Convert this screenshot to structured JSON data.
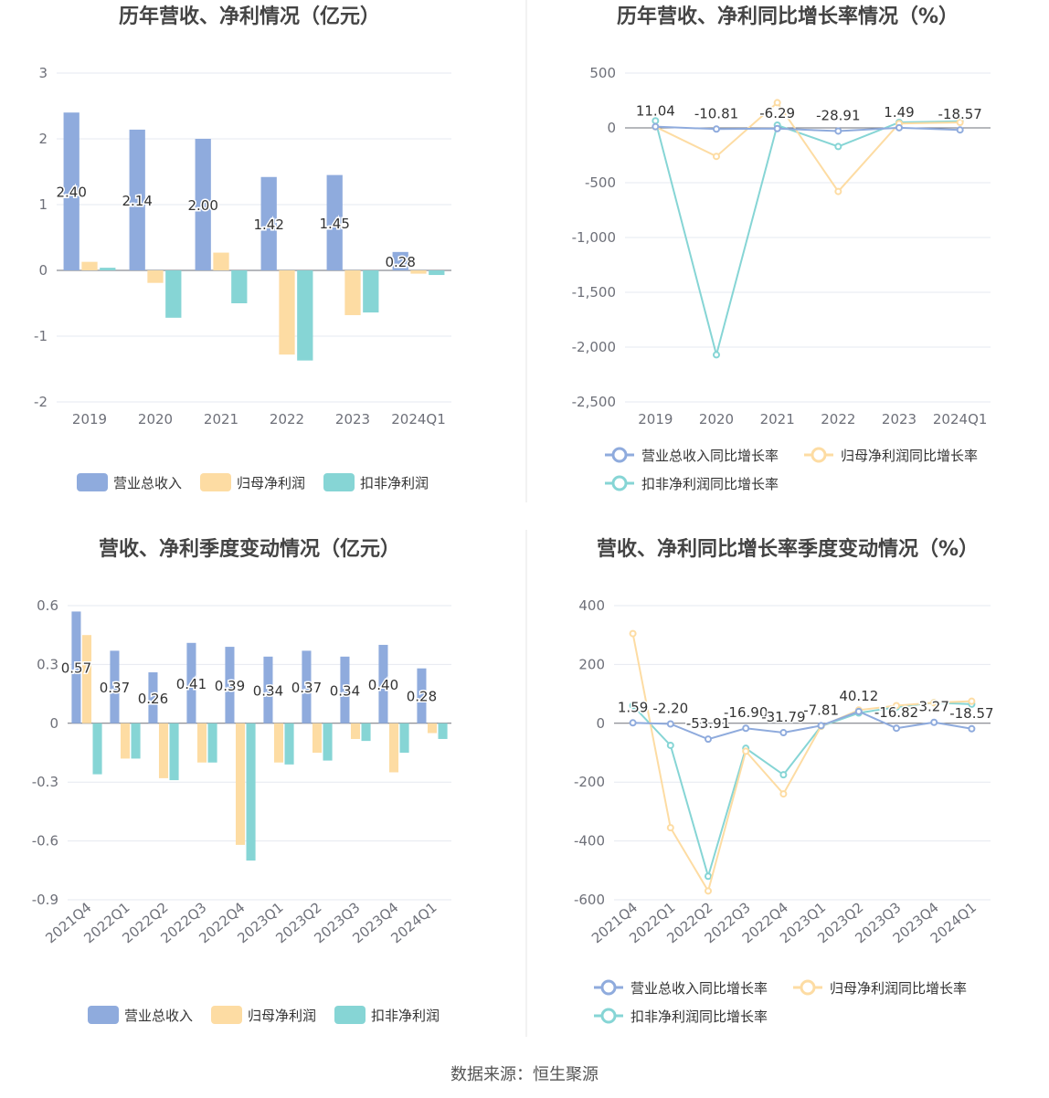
{
  "colors": {
    "revenue": "#8fabdd",
    "netprofit": "#fddca3",
    "deducted": "#86d5d5"
  },
  "source": "数据来源：恒生聚源",
  "chart_data": [
    {
      "type": "bar",
      "title": "历年营收、净利情况（亿元）",
      "categories": [
        "2019",
        "2020",
        "2021",
        "2022",
        "2023",
        "2024Q1"
      ],
      "ylim": [
        -2,
        3
      ],
      "yticks": [
        "3",
        "2",
        "1",
        "0",
        "-1",
        "-2"
      ],
      "series": [
        {
          "name": "营业总收入",
          "values": [
            2.4,
            2.14,
            2.0,
            1.42,
            1.45,
            0.28
          ],
          "labels": [
            "2.40",
            "2.14",
            "2.00",
            "1.42",
            "1.45",
            "0.28"
          ]
        },
        {
          "name": "归母净利润",
          "values": [
            0.13,
            -0.19,
            0.27,
            -1.28,
            -0.68,
            -0.05
          ]
        },
        {
          "name": "扣非净利润",
          "values": [
            0.04,
            -0.72,
            -0.5,
            -1.37,
            -0.64,
            -0.07
          ]
        }
      ]
    },
    {
      "type": "line",
      "title": "历年营收、净利同比增长率情况（%）",
      "categories": [
        "2019",
        "2020",
        "2021",
        "2022",
        "2023",
        "2024Q1"
      ],
      "ylim": [
        -2500,
        500
      ],
      "yticks": [
        "500",
        "0",
        "-500",
        "-1,000",
        "-1,500",
        "-2,000",
        "-2,500"
      ],
      "series": [
        {
          "name": "营业总收入同比增长率",
          "values": [
            11.04,
            -10.81,
            -6.29,
            -28.91,
            1.49,
            -18.57
          ],
          "labels": [
            "11.04",
            "-10.81",
            "-6.29",
            "-28.91",
            "1.49",
            "-18.57"
          ]
        },
        {
          "name": "归母净利润同比增长率",
          "values": [
            10,
            -260,
            230,
            -580,
            40,
            50
          ]
        },
        {
          "name": "扣非净利润同比增长率",
          "values": [
            65,
            -2070,
            25,
            -170,
            50,
            60
          ]
        }
      ]
    },
    {
      "type": "bar",
      "title": "营收、净利季度变动情况（亿元）",
      "categories": [
        "2021Q4",
        "2022Q1",
        "2022Q2",
        "2022Q3",
        "2022Q4",
        "2023Q1",
        "2023Q2",
        "2023Q3",
        "2023Q4",
        "2024Q1"
      ],
      "ylim": [
        -0.9,
        0.6
      ],
      "yticks": [
        "0.6",
        "0.3",
        "0",
        "-0.3",
        "-0.6",
        "-0.9"
      ],
      "series": [
        {
          "name": "营业总收入",
          "values": [
            0.57,
            0.37,
            0.26,
            0.41,
            0.39,
            0.34,
            0.37,
            0.34,
            0.4,
            0.28
          ],
          "labels": [
            "0.57",
            "0.37",
            "0.26",
            "0.41",
            "0.39",
            "0.34",
            "0.37",
            "0.34",
            "0.40",
            "0.28"
          ]
        },
        {
          "name": "归母净利润",
          "values": [
            0.45,
            -0.18,
            -0.28,
            -0.2,
            -0.62,
            -0.2,
            -0.15,
            -0.08,
            -0.25,
            -0.05
          ]
        },
        {
          "name": "扣非净利润",
          "values": [
            -0.26,
            -0.18,
            -0.29,
            -0.2,
            -0.7,
            -0.21,
            -0.19,
            -0.09,
            -0.15,
            -0.08
          ]
        }
      ]
    },
    {
      "type": "line",
      "title": "营收、净利同比增长率季度变动情况（%）",
      "categories": [
        "2021Q4",
        "2022Q1",
        "2022Q2",
        "2022Q3",
        "2022Q4",
        "2023Q1",
        "2023Q2",
        "2023Q3",
        "2023Q4",
        "2024Q1"
      ],
      "ylim": [
        -600,
        400
      ],
      "yticks": [
        "400",
        "200",
        "0",
        "-200",
        "-400",
        "-600"
      ],
      "series": [
        {
          "name": "营业总收入同比增长率",
          "values": [
            1.59,
            -2.2,
            -53.91,
            -16.9,
            -31.79,
            -7.81,
            40.12,
            -16.82,
            3.27,
            -18.57
          ],
          "labels": [
            "1.59",
            "-2.20",
            "-53.91",
            "-16.90",
            "-31.79",
            "-7.81",
            "40.12",
            "-16.82",
            "3.27",
            "-18.57"
          ]
        },
        {
          "name": "归母净利润同比增长率",
          "values": [
            305,
            -355,
            -570,
            -95,
            -240,
            -10,
            45,
            60,
            70,
            75
          ]
        },
        {
          "name": "扣非净利润同比增长率",
          "values": [
            60,
            -75,
            -520,
            -85,
            -175,
            -10,
            35,
            55,
            70,
            65
          ]
        }
      ]
    }
  ]
}
